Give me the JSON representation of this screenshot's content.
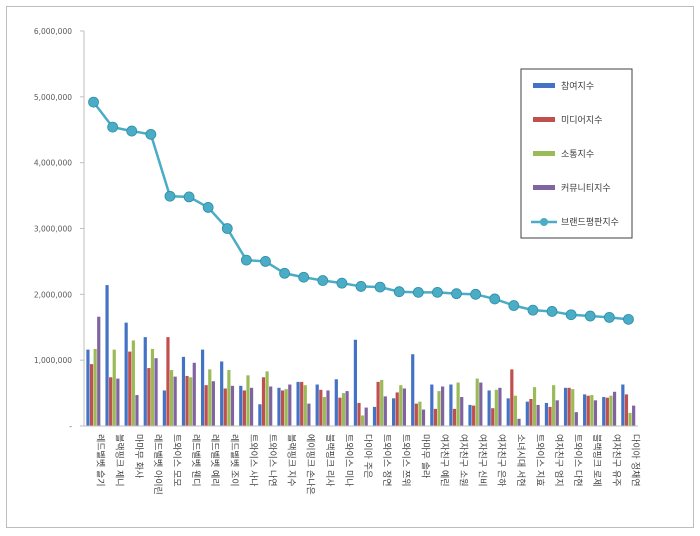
{
  "chart_data": {
    "type": "bar",
    "title": "",
    "xlabel": "",
    "ylabel": "",
    "ylim": [
      0,
      6000000
    ],
    "y_ticks": [
      "-",
      "1,000,000",
      "2,000,000",
      "3,000,000",
      "4,000,000",
      "5,000,000",
      "6,000,000"
    ],
    "legend_position": "top-right",
    "grid": false,
    "categories": [
      "레드벨벳 슬기",
      "블랙핑크 제니",
      "마마무 화사",
      "레드벨벳 아이린",
      "트와이스 모모",
      "레드벨벳 웬디",
      "레드벨벳 예리",
      "레드벨벳 조이",
      "트와이스 사나",
      "트와이스 나연",
      "블랙핑크 지수",
      "에이핑크 손나은",
      "블랙핑크 리사",
      "트와이스 미나",
      "다이아 주은",
      "트와이스 정연",
      "트와이스 쯔위",
      "마마무 솔라",
      "여자친구 예린",
      "여자친구 소원",
      "여자친구 신비",
      "여자친구 은하",
      "소녀시대 서현",
      "트와이스 지효",
      "여자친구 엄지",
      "트와이스 다현",
      "블랙핑크 로제",
      "여자친구 유주",
      "다이아 정채연"
    ],
    "series": [
      {
        "name": "참여지수",
        "color": "#4472c4",
        "type": "bar",
        "values": [
          1160000,
          2140000,
          1570000,
          1350000,
          540000,
          1050000,
          1160000,
          980000,
          610000,
          330000,
          580000,
          670000,
          630000,
          710000,
          1310000,
          290000,
          420000,
          1090000,
          630000,
          630000,
          320000,
          540000,
          420000,
          370000,
          350000,
          580000,
          480000,
          440000,
          630000
        ]
      },
      {
        "name": "미디어지수",
        "color": "#c0504d",
        "type": "bar",
        "values": [
          940000,
          740000,
          1130000,
          880000,
          1350000,
          760000,
          620000,
          570000,
          540000,
          740000,
          540000,
          670000,
          550000,
          430000,
          350000,
          670000,
          510000,
          340000,
          260000,
          260000,
          310000,
          270000,
          860000,
          410000,
          290000,
          580000,
          460000,
          430000,
          480000
        ]
      },
      {
        "name": "소통지수",
        "color": "#9bbb59",
        "type": "bar",
        "values": [
          1170000,
          1160000,
          1300000,
          1170000,
          850000,
          740000,
          860000,
          850000,
          770000,
          830000,
          560000,
          620000,
          440000,
          500000,
          160000,
          700000,
          620000,
          370000,
          530000,
          660000,
          720000,
          550000,
          460000,
          590000,
          620000,
          560000,
          470000,
          460000,
          200000
        ]
      },
      {
        "name": "커뮤니티지수",
        "color": "#8064a2",
        "type": "bar",
        "values": [
          1660000,
          720000,
          470000,
          1030000,
          750000,
          960000,
          680000,
          610000,
          580000,
          600000,
          630000,
          340000,
          540000,
          530000,
          280000,
          450000,
          570000,
          250000,
          600000,
          440000,
          660000,
          580000,
          110000,
          320000,
          390000,
          210000,
          390000,
          520000,
          310000
        ]
      },
      {
        "name": "브랜드평판지수",
        "color": "#4bacc6",
        "type": "line",
        "values": [
          4920000,
          4540000,
          4480000,
          4430000,
          3490000,
          3480000,
          3320000,
          3000000,
          2520000,
          2500000,
          2320000,
          2260000,
          2210000,
          2170000,
          2120000,
          2110000,
          2040000,
          2030000,
          2030000,
          2010000,
          2000000,
          1930000,
          1830000,
          1760000,
          1740000,
          1690000,
          1670000,
          1650000,
          1620000
        ]
      }
    ]
  }
}
